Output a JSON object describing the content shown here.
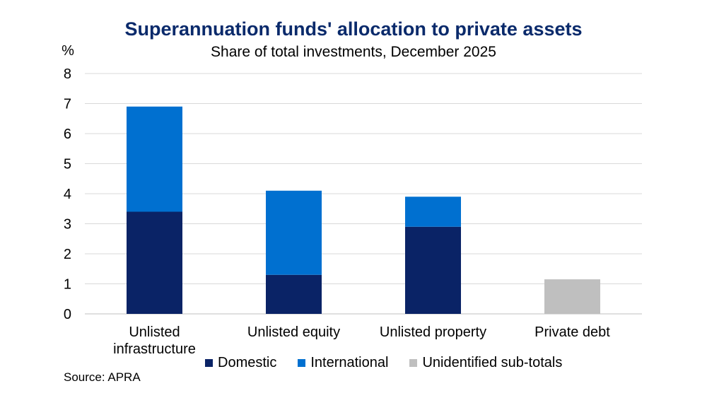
{
  "chart_data": {
    "type": "bar",
    "stacked": true,
    "title": "Superannuation funds' allocation to private assets",
    "subtitle": "Share of total investments, December 2025",
    "ylabel": "%",
    "ylim": [
      0,
      8
    ],
    "yticks": [
      0,
      1,
      2,
      3,
      4,
      5,
      6,
      7,
      8
    ],
    "grid": true,
    "legend_position": "bottom",
    "categories": [
      [
        "Unlisted",
        "infrastructure"
      ],
      [
        "Unlisted equity"
      ],
      [
        "Unlisted property"
      ],
      [
        "Private debt"
      ]
    ],
    "series": [
      {
        "name": "Domestic",
        "color": "#0a2366",
        "values": [
          3.4,
          1.3,
          2.9,
          0
        ]
      },
      {
        "name": "International",
        "color": "#0070d0",
        "values": [
          3.5,
          2.8,
          1.0,
          0
        ]
      },
      {
        "name": "Unidentified sub-totals",
        "color": "#bfbfbf",
        "values": [
          0,
          0,
          0,
          1.15
        ]
      }
    ],
    "source": "Source: APRA"
  }
}
